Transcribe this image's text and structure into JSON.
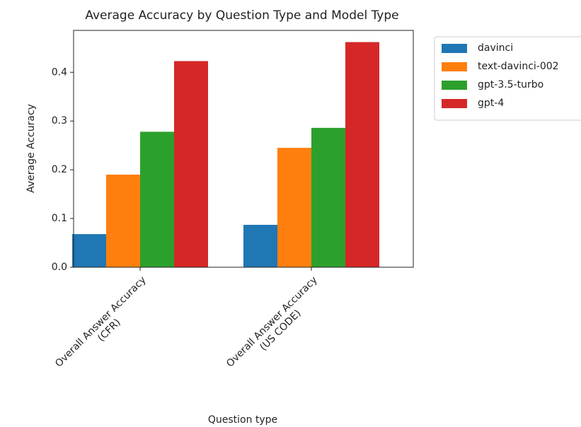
{
  "chart_data": {
    "type": "bar",
    "title": "Average Accuracy by Question Type and Model Type",
    "x_label": "Question type",
    "y_label": "Average Accuracy",
    "categories": [
      "Overall Answer Accuracy\n(CFR)",
      "Overall Answer Accuracy\n(US CODE)"
    ],
    "series": [
      {
        "name": "davinci",
        "color": "#1f77b4",
        "values": [
          0.068,
          0.087
        ]
      },
      {
        "name": "text-davinci-002",
        "color": "#ff7f0e",
        "values": [
          0.19,
          0.245
        ]
      },
      {
        "name": "gpt-3.5-turbo",
        "color": "#2ca02c",
        "values": [
          0.278,
          0.286
        ]
      },
      {
        "name": "gpt-4",
        "color": "#d62728",
        "values": [
          0.423,
          0.462
        ]
      }
    ],
    "ylim": [
      0,
      0.486
    ],
    "yticks": [
      {
        "value": 0,
        "label": "0.0"
      },
      0.1,
      0.2,
      0.3,
      0.4
    ],
    "legend": "outside-upper-right"
  }
}
